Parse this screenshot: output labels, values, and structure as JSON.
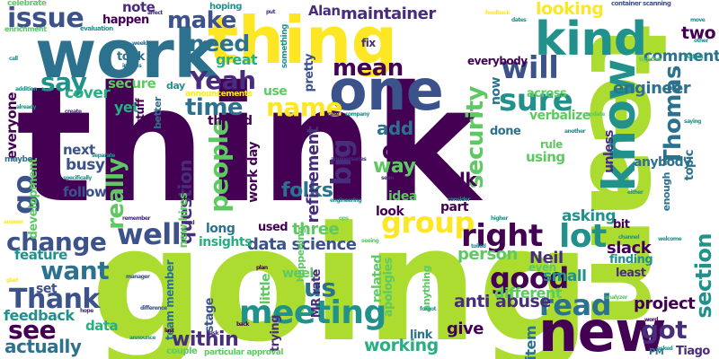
{
  "palette": {
    "purple": "#440154",
    "indigo": "#472d7b",
    "blue": "#3b528b",
    "steel": "#2c728e",
    "teal": "#21918c",
    "green": "#28ae80",
    "lime": "#5ec962",
    "yellow_green": "#addc30",
    "yellow": "#fde725"
  },
  "words": [
    {
      "text": "think",
      "color": "#440154"
    },
    {
      "text": "going",
      "color": "#addc30"
    },
    {
      "text": "team",
      "color": "#addc30"
    },
    {
      "text": "work",
      "color": "#2c728e"
    },
    {
      "text": "thing",
      "color": "#fde725"
    },
    {
      "text": "one",
      "color": "#3b528b"
    },
    {
      "text": "new",
      "color": "#440154"
    },
    {
      "text": "know",
      "color": "#21918c"
    },
    {
      "text": "kind",
      "color": "#21918c"
    },
    {
      "text": "issue",
      "color": "#3b528b"
    },
    {
      "text": "make",
      "color": "#3b528b"
    },
    {
      "text": "need",
      "color": "#2c728e"
    },
    {
      "text": "Yeah",
      "color": "#472d7b"
    },
    {
      "text": "will",
      "color": "#3b528b"
    },
    {
      "text": "mean",
      "color": "#440154"
    },
    {
      "text": "sure",
      "color": "#21918c"
    },
    {
      "text": "time",
      "color": "#2c728e"
    },
    {
      "text": "name",
      "color": "#fde725"
    },
    {
      "text": "Thomas",
      "color": "#2c728e"
    },
    {
      "text": "security",
      "color": "#5ec962"
    },
    {
      "text": "people",
      "color": "#5ec962"
    },
    {
      "text": "really",
      "color": "#5ec962"
    },
    {
      "text": "group",
      "color": "#fde725"
    },
    {
      "text": "right",
      "color": "#440154"
    },
    {
      "text": "lot",
      "color": "#21918c"
    },
    {
      "text": "change",
      "color": "#3b528b"
    },
    {
      "text": "well",
      "color": "#3b528b"
    },
    {
      "text": "want",
      "color": "#2c728e"
    },
    {
      "text": "Thank",
      "color": "#3b528b"
    },
    {
      "text": "see",
      "color": "#440154"
    },
    {
      "text": "good",
      "color": "#440154"
    },
    {
      "text": "read",
      "color": "#2c728e"
    },
    {
      "text": "meeting",
      "color": "#21918c"
    },
    {
      "text": "section",
      "color": "#21918c"
    },
    {
      "text": "big",
      "color": "#472d7b"
    },
    {
      "text": "us",
      "color": "#2c728e"
    },
    {
      "text": "got",
      "color": "#472d7b"
    },
    {
      "text": "say",
      "color": "#21918c"
    },
    {
      "text": "go",
      "color": "#3b528b"
    },
    {
      "text": "maintainer",
      "color": "#472d7b"
    },
    {
      "text": "looking",
      "color": "#fde725"
    },
    {
      "text": "Alan",
      "color": "#472d7b"
    },
    {
      "text": "note",
      "color": "#472d7b"
    },
    {
      "text": "two",
      "color": "#440154"
    },
    {
      "text": "comment",
      "color": "#2c728e"
    },
    {
      "text": "engineer",
      "color": "#2c728e"
    },
    {
      "text": "add",
      "color": "#2c728e"
    },
    {
      "text": "folks",
      "color": "#2c728e"
    },
    {
      "text": "way",
      "color": "#5ec962"
    },
    {
      "text": "Okay",
      "color": "#440154"
    },
    {
      "text": "refinement",
      "color": "#472d7b"
    },
    {
      "text": "question",
      "color": "#472d7b"
    },
    {
      "text": "three",
      "color": "#5ec962"
    },
    {
      "text": "data science",
      "color": "#3b528b"
    },
    {
      "text": "talk",
      "color": "#440154"
    },
    {
      "text": "slack",
      "color": "#440154"
    },
    {
      "text": "asking",
      "color": "#21918c"
    },
    {
      "text": "Neil",
      "color": "#472d7b"
    },
    {
      "text": "person",
      "color": "#5ec962"
    },
    {
      "text": "project",
      "color": "#440154"
    },
    {
      "text": "feature",
      "color": "#21918c"
    },
    {
      "text": "feedback",
      "color": "#21918c"
    },
    {
      "text": "actually",
      "color": "#2c728e"
    },
    {
      "text": "within",
      "color": "#472d7b"
    },
    {
      "text": "working",
      "color": "#28ae80"
    },
    {
      "text": "give",
      "color": "#440154"
    },
    {
      "text": "anti abuse",
      "color": "#472d7b"
    },
    {
      "text": "small",
      "color": "#21918c"
    },
    {
      "text": "different",
      "color": "#5ec962"
    },
    {
      "text": "item",
      "color": "#2c728e"
    },
    {
      "text": "Tiago",
      "color": "#472d7b"
    },
    {
      "text": "cover",
      "color": "#28ae80"
    },
    {
      "text": "secure",
      "color": "#5ec962"
    },
    {
      "text": "yet",
      "color": "#28ae80"
    },
    {
      "text": "everyone",
      "color": "#440154"
    },
    {
      "text": "next",
      "color": "#3b528b"
    },
    {
      "text": "busy",
      "color": "#3b528b"
    },
    {
      "text": "follow",
      "color": "#3b528b"
    },
    {
      "text": "development",
      "color": "#5ec962"
    },
    {
      "text": "data",
      "color": "#28ae80"
    },
    {
      "text": "set",
      "color": "#3b528b"
    },
    {
      "text": "great",
      "color": "#28ae80"
    },
    {
      "text": "thread",
      "color": "#440154"
    },
    {
      "text": "work day",
      "color": "#440154"
    },
    {
      "text": "use",
      "color": "#5ec962"
    },
    {
      "text": "pretty",
      "color": "#3b528b"
    },
    {
      "text": "took",
      "color": "#2c728e"
    },
    {
      "text": "happen",
      "color": "#440154"
    },
    {
      "text": "everybody",
      "color": "#440154"
    },
    {
      "text": "now",
      "color": "#2c728e"
    },
    {
      "text": "across",
      "color": "#5ec962"
    },
    {
      "text": "verbalize",
      "color": "#5ec962"
    },
    {
      "text": "done",
      "color": "#2c728e"
    },
    {
      "text": "using",
      "color": "#5ec962"
    },
    {
      "text": "anybody",
      "color": "#2c728e"
    },
    {
      "text": "unless",
      "color": "#472d7b"
    },
    {
      "text": "topic",
      "color": "#2c728e"
    },
    {
      "text": "rule",
      "color": "#5ec962"
    },
    {
      "text": "enough",
      "color": "#2c728e"
    },
    {
      "text": "bit",
      "color": "#440154"
    },
    {
      "text": "part",
      "color": "#440154"
    },
    {
      "text": "idea",
      "color": "#5ec962"
    },
    {
      "text": "look",
      "color": "#440154"
    },
    {
      "text": "used",
      "color": "#440154"
    },
    {
      "text": "insights",
      "color": "#28ae80"
    },
    {
      "text": "long",
      "color": "#2c728e"
    },
    {
      "text": "new hires",
      "color": "#5ec962"
    },
    {
      "text": "team member",
      "color": "#2c728e"
    },
    {
      "text": "stage",
      "color": "#3b528b"
    },
    {
      "text": "little",
      "color": "#5ec962"
    },
    {
      "text": "trying",
      "color": "#472d7b"
    },
    {
      "text": "week",
      "color": "#5ec962"
    },
    {
      "text": "MR rate",
      "color": "#472d7b"
    },
    {
      "text": "related",
      "color": "#5ec962"
    },
    {
      "text": "apologies",
      "color": "#5ec962"
    },
    {
      "text": "even",
      "color": "#5ec962"
    },
    {
      "text": "finding",
      "color": "#21918c"
    },
    {
      "text": "least",
      "color": "#472d7b"
    },
    {
      "text": "link",
      "color": "#2c728e"
    },
    {
      "text": "couple",
      "color": "#5ec962"
    },
    {
      "text": "particular approval",
      "color": "#5ec962"
    },
    {
      "text": "PM",
      "color": "#2c728e"
    },
    {
      "text": "fix",
      "color": "#472d7b"
    },
    {
      "text": "better",
      "color": "#2c728e"
    },
    {
      "text": "day",
      "color": "#21918c"
    },
    {
      "text": "stuff",
      "color": "#440154"
    },
    {
      "text": "announcements",
      "color": "#fde725"
    },
    {
      "text": "happening",
      "color": "#5ec962"
    },
    {
      "text": "hoping",
      "color": "#21918c"
    },
    {
      "text": "something",
      "color": "#21918c"
    },
    {
      "text": "celebrate",
      "color": "#5ec962"
    },
    {
      "text": "enrichment",
      "color": "#5ec962"
    },
    {
      "text": "anything",
      "color": "#5ec962"
    },
    {
      "text": "maybe",
      "color": "#2c728e"
    },
    {
      "text": "evaluation",
      "color": "#21918c"
    },
    {
      "text": "weekly",
      "color": "#2c728e"
    },
    {
      "text": "images",
      "color": "#2c728e"
    },
    {
      "text": "addition",
      "color": "#21918c"
    },
    {
      "text": "already",
      "color": "#21918c"
    },
    {
      "text": "call",
      "color": "#21918c"
    },
    {
      "text": "create",
      "color": "#472d7b"
    },
    {
      "text": "separate",
      "color": "#21918c"
    },
    {
      "text": "specifically",
      "color": "#21918c"
    },
    {
      "text": "feedback",
      "color": "#fde725"
    },
    {
      "text": "container scanning",
      "color": "#3b528b"
    },
    {
      "text": "move",
      "color": "#21918c"
    },
    {
      "text": "budget",
      "color": "#21918c"
    },
    {
      "text": "other",
      "color": "#21918c"
    },
    {
      "text": "case",
      "color": "#472d7b"
    },
    {
      "text": "company",
      "color": "#21918c"
    },
    {
      "text": "another",
      "color": "#21918c"
    },
    {
      "text": "please",
      "color": "#21918c"
    },
    {
      "text": "update",
      "color": "#5ec962"
    },
    {
      "text": "saying",
      "color": "#21918c"
    },
    {
      "text": "consider",
      "color": "#21918c"
    },
    {
      "text": "either",
      "color": "#21918c"
    },
    {
      "text": "welcome",
      "color": "#21918c"
    },
    {
      "text": "channel",
      "color": "#21918c"
    },
    {
      "text": "analyzer",
      "color": "#5ec962"
    },
    {
      "text": "manager",
      "color": "#3b528b"
    },
    {
      "text": "difference",
      "color": "#3b528b"
    },
    {
      "text": "announce",
      "color": "#21918c"
    },
    {
      "text": "hope",
      "color": "#472d7b"
    },
    {
      "text": "last",
      "color": "#440154"
    },
    {
      "text": "ask",
      "color": "#472d7b"
    },
    {
      "text": "back",
      "color": "#440154"
    },
    {
      "text": "plan",
      "color": "#440154"
    },
    {
      "text": "forgot",
      "color": "#21918c"
    },
    {
      "text": "asked",
      "color": "#21918c"
    },
    {
      "text": "word",
      "color": "#440154"
    },
    {
      "text": "higher",
      "color": "#21918c"
    },
    {
      "text": "tolled",
      "color": "#21918c"
    },
    {
      "text": "seeing",
      "color": "#5ec962"
    },
    {
      "text": "answer",
      "color": "#fde725"
    },
    {
      "text": "glad",
      "color": "#fde725"
    },
    {
      "text": "remember",
      "color": "#472d7b"
    },
    {
      "text": "engineering",
      "color": "#21918c"
    },
    {
      "text": "dates",
      "color": "#21918c"
    },
    {
      "text": "anniversaries",
      "color": "#472d7b"
    },
    {
      "text": "together",
      "color": "#5ec962"
    },
    {
      "text": "put",
      "color": "#472d7b"
    },
    {
      "text": "ops",
      "color": "#5ec962"
    },
    {
      "text": "end",
      "color": "#472d7b"
    },
    {
      "text": "seen",
      "color": "#472d7b"
    },
    {
      "text": "affect",
      "color": "#472d7b"
    }
  ]
}
